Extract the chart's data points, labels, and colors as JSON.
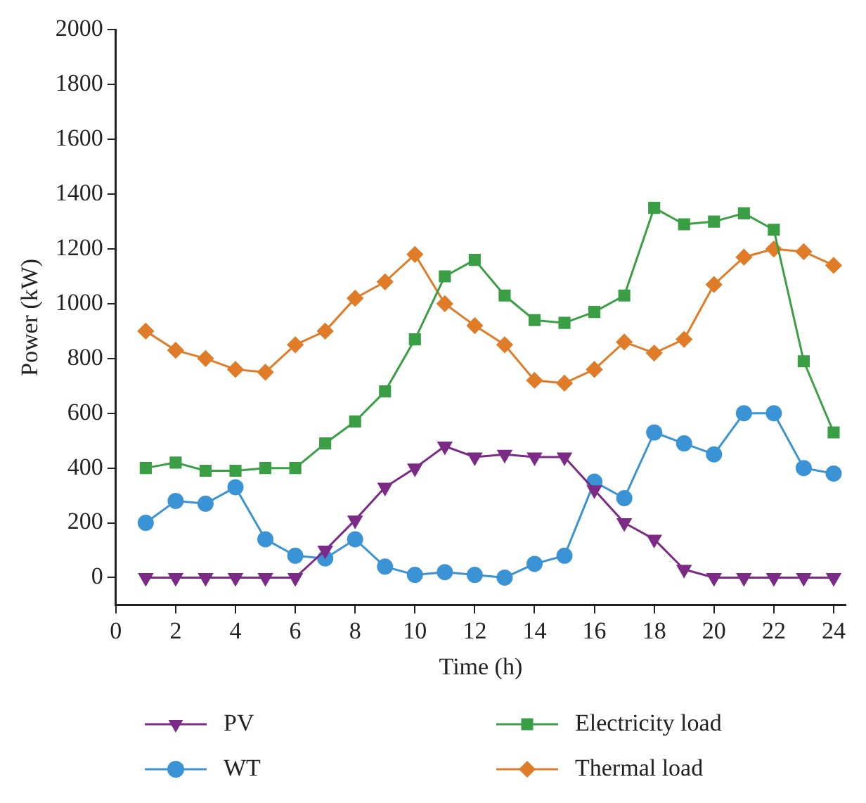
{
  "chart_data": {
    "type": "line",
    "xlabel": "Time (h)",
    "ylabel": "Power (kW)",
    "x": [
      1,
      2,
      3,
      4,
      5,
      6,
      7,
      8,
      9,
      10,
      11,
      12,
      13,
      14,
      15,
      16,
      17,
      18,
      19,
      20,
      21,
      22,
      23,
      24
    ],
    "series": [
      {
        "name": "PV",
        "color": "#7b2a85",
        "marker": "triangle",
        "values": [
          0,
          0,
          0,
          0,
          0,
          0,
          100,
          210,
          330,
          400,
          480,
          440,
          450,
          440,
          440,
          320,
          200,
          140,
          30,
          0,
          0,
          0,
          0,
          0
        ]
      },
      {
        "name": "Electricity load",
        "color": "#3a9e45",
        "marker": "square",
        "values": [
          400,
          420,
          390,
          390,
          400,
          400,
          490,
          570,
          680,
          870,
          1100,
          1160,
          1030,
          940,
          930,
          970,
          1030,
          1350,
          1290,
          1300,
          1330,
          1270,
          790,
          530
        ]
      },
      {
        "name": "WT",
        "color": "#3a93d4",
        "marker": "circle",
        "values": [
          200,
          280,
          270,
          330,
          140,
          80,
          70,
          140,
          40,
          10,
          20,
          10,
          0,
          50,
          80,
          350,
          290,
          530,
          490,
          450,
          600,
          600,
          400,
          380
        ]
      },
      {
        "name": "Thermal load",
        "color": "#e07b28",
        "marker": "diamond",
        "values": [
          900,
          830,
          800,
          760,
          750,
          850,
          900,
          1020,
          1080,
          1180,
          1000,
          920,
          850,
          720,
          710,
          760,
          860,
          820,
          870,
          1070,
          1170,
          1200,
          1190,
          1140
        ]
      }
    ],
    "xlim": [
      0,
      24.4
    ],
    "xticks": [
      0,
      2,
      4,
      6,
      8,
      10,
      12,
      14,
      16,
      18,
      20,
      22,
      24
    ],
    "ylim": [
      -100,
      2000
    ],
    "yticks": [
      0,
      200,
      400,
      600,
      800,
      1000,
      1200,
      1400,
      1600,
      1800,
      2000
    ],
    "grid": false,
    "legend": "bottom",
    "line_style": "solid"
  }
}
